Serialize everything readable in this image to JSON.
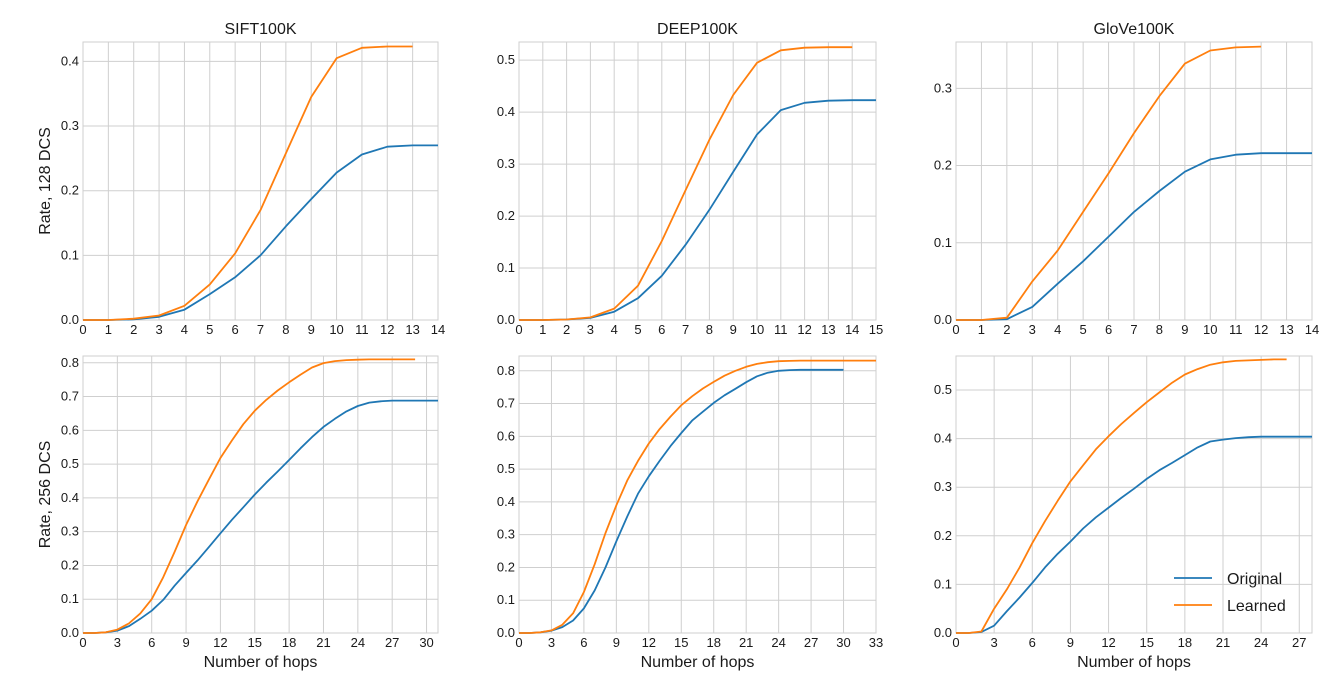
{
  "colors": {
    "original": "#1f77b4",
    "learned": "#ff7f0e",
    "grid": "#cfcfcf",
    "text": "#1a1a1a"
  },
  "legend": {
    "original": "Original",
    "learned": "Learned",
    "location": "lower-right of bottom-right panel"
  },
  "chart_data": [
    {
      "type": "line",
      "title": "SIFT100K",
      "xlabel": "",
      "ylabel": "Rate, 128 DCS",
      "xlim": [
        0,
        14
      ],
      "ylim": [
        0,
        0.43
      ],
      "xticks": [
        0,
        1,
        2,
        3,
        4,
        5,
        6,
        7,
        8,
        9,
        10,
        11,
        12,
        13,
        14
      ],
      "yticks": [
        0.0,
        0.1,
        0.2,
        0.3,
        0.4
      ],
      "grid": true,
      "series": [
        {
          "name": "Original",
          "x": [
            0,
            1,
            2,
            3,
            4,
            5,
            6,
            7,
            8,
            9,
            10,
            11,
            12,
            13,
            14
          ],
          "y": [
            0,
            0,
            0.001,
            0.005,
            0.016,
            0.04,
            0.066,
            0.1,
            0.145,
            0.187,
            0.228,
            0.256,
            0.268,
            0.27,
            0.27
          ]
        },
        {
          "name": "Learned",
          "x": [
            0,
            1,
            2,
            3,
            4,
            5,
            6,
            7,
            8,
            9,
            10,
            11,
            12,
            13
          ],
          "y": [
            0,
            0,
            0.002,
            0.007,
            0.022,
            0.055,
            0.103,
            0.17,
            0.258,
            0.345,
            0.405,
            0.421,
            0.423,
            0.423
          ]
        }
      ]
    },
    {
      "type": "line",
      "title": "DEEP100K",
      "xlabel": "",
      "ylabel": "",
      "xlim": [
        0,
        15
      ],
      "ylim": [
        0,
        0.535
      ],
      "xticks": [
        0,
        1,
        2,
        3,
        4,
        5,
        6,
        7,
        8,
        9,
        10,
        11,
        12,
        13,
        14,
        15
      ],
      "yticks": [
        0.0,
        0.1,
        0.2,
        0.3,
        0.4,
        0.5
      ],
      "grid": true,
      "series": [
        {
          "name": "Original",
          "x": [
            0,
            1,
            2,
            3,
            4,
            5,
            6,
            7,
            8,
            9,
            10,
            11,
            12,
            13,
            14,
            15
          ],
          "y": [
            0,
            0,
            0.001,
            0.004,
            0.016,
            0.042,
            0.085,
            0.145,
            0.212,
            0.285,
            0.357,
            0.404,
            0.418,
            0.422,
            0.423,
            0.423
          ]
        },
        {
          "name": "Learned",
          "x": [
            0,
            1,
            2,
            3,
            4,
            5,
            6,
            7,
            8,
            9,
            10,
            11,
            12,
            13,
            14
          ],
          "y": [
            0,
            0,
            0.001,
            0.005,
            0.022,
            0.066,
            0.152,
            0.25,
            0.347,
            0.433,
            0.495,
            0.519,
            0.524,
            0.525,
            0.525
          ]
        }
      ]
    },
    {
      "type": "line",
      "title": "GloVe100K",
      "xlabel": "",
      "ylabel": "",
      "xlim": [
        0,
        14
      ],
      "ylim": [
        0,
        0.36
      ],
      "xticks": [
        0,
        1,
        2,
        3,
        4,
        5,
        6,
        7,
        8,
        9,
        10,
        11,
        12,
        13,
        14
      ],
      "yticks": [
        0.0,
        0.1,
        0.2,
        0.3
      ],
      "grid": true,
      "series": [
        {
          "name": "Original",
          "x": [
            0,
            1,
            2,
            3,
            4,
            5,
            6,
            7,
            8,
            9,
            10,
            11,
            12,
            13,
            14
          ],
          "y": [
            0,
            0,
            0.001,
            0.017,
            0.047,
            0.076,
            0.108,
            0.14,
            0.167,
            0.192,
            0.208,
            0.214,
            0.216,
            0.216,
            0.216
          ]
        },
        {
          "name": "Learned",
          "x": [
            0,
            1,
            2,
            3,
            4,
            5,
            6,
            7,
            8,
            9,
            10,
            11,
            12
          ],
          "y": [
            0,
            0,
            0.003,
            0.05,
            0.09,
            0.14,
            0.19,
            0.242,
            0.29,
            0.332,
            0.349,
            0.353,
            0.354
          ]
        }
      ]
    },
    {
      "type": "line",
      "title": "",
      "xlabel": "Number of hops",
      "ylabel": "Rate, 256 DCS",
      "xlim": [
        0,
        31
      ],
      "ylim": [
        0,
        0.82
      ],
      "xticks": [
        0,
        3,
        6,
        9,
        12,
        15,
        18,
        21,
        24,
        27,
        30
      ],
      "yticks": [
        0.0,
        0.1,
        0.2,
        0.3,
        0.4,
        0.5,
        0.6,
        0.7,
        0.8
      ],
      "grid": true,
      "series": [
        {
          "name": "Original",
          "x": [
            0,
            1,
            2,
            3,
            4,
            5,
            6,
            7,
            8,
            9,
            10,
            11,
            12,
            13,
            14,
            15,
            16,
            17,
            18,
            19,
            20,
            21,
            22,
            23,
            24,
            25,
            26,
            27,
            28,
            29,
            30,
            31
          ],
          "y": [
            0,
            0,
            0.002,
            0.007,
            0.02,
            0.042,
            0.066,
            0.098,
            0.14,
            0.178,
            0.215,
            0.255,
            0.295,
            0.335,
            0.372,
            0.41,
            0.445,
            0.478,
            0.512,
            0.547,
            0.58,
            0.61,
            0.634,
            0.656,
            0.672,
            0.682,
            0.686,
            0.688,
            0.688,
            0.688,
            0.688,
            0.688
          ]
        },
        {
          "name": "Learned",
          "x": [
            0,
            1,
            2,
            3,
            4,
            5,
            6,
            7,
            8,
            9,
            10,
            11,
            12,
            13,
            14,
            15,
            16,
            17,
            18,
            19,
            20,
            21,
            22,
            23,
            24,
            25,
            26,
            27,
            28,
            29
          ],
          "y": [
            0,
            0,
            0.002,
            0.01,
            0.028,
            0.058,
            0.1,
            0.165,
            0.24,
            0.32,
            0.39,
            0.455,
            0.518,
            0.57,
            0.618,
            0.658,
            0.69,
            0.718,
            0.742,
            0.765,
            0.786,
            0.799,
            0.805,
            0.808,
            0.809,
            0.81,
            0.81,
            0.81,
            0.81,
            0.81
          ]
        }
      ]
    },
    {
      "type": "line",
      "title": "",
      "xlabel": "Number of hops",
      "ylabel": "",
      "xlim": [
        0,
        33
      ],
      "ylim": [
        0,
        0.845
      ],
      "xticks": [
        0,
        3,
        6,
        9,
        12,
        15,
        18,
        21,
        24,
        27,
        30,
        33
      ],
      "yticks": [
        0.0,
        0.1,
        0.2,
        0.3,
        0.4,
        0.5,
        0.6,
        0.7,
        0.8
      ],
      "grid": true,
      "series": [
        {
          "name": "Original",
          "x": [
            0,
            1,
            2,
            3,
            4,
            5,
            6,
            7,
            8,
            9,
            10,
            11,
            12,
            13,
            14,
            15,
            16,
            17,
            18,
            19,
            20,
            21,
            22,
            23,
            24,
            25,
            26,
            27,
            28,
            29,
            30
          ],
          "y": [
            0,
            0,
            0.002,
            0.007,
            0.018,
            0.038,
            0.075,
            0.13,
            0.2,
            0.28,
            0.355,
            0.425,
            0.478,
            0.525,
            0.57,
            0.61,
            0.648,
            0.675,
            0.702,
            0.725,
            0.745,
            0.765,
            0.783,
            0.794,
            0.8,
            0.802,
            0.803,
            0.803,
            0.803,
            0.803,
            0.803
          ]
        },
        {
          "name": "Learned",
          "x": [
            0,
            1,
            2,
            3,
            4,
            5,
            6,
            7,
            8,
            9,
            10,
            11,
            12,
            13,
            14,
            15,
            16,
            17,
            18,
            19,
            20,
            21,
            22,
            23,
            24,
            25,
            26,
            27,
            28,
            29,
            30,
            31,
            32,
            33
          ],
          "y": [
            0,
            0,
            0.002,
            0.008,
            0.025,
            0.06,
            0.125,
            0.21,
            0.305,
            0.39,
            0.465,
            0.525,
            0.578,
            0.622,
            0.66,
            0.695,
            0.722,
            0.746,
            0.766,
            0.785,
            0.8,
            0.812,
            0.821,
            0.826,
            0.829,
            0.83,
            0.831,
            0.831,
            0.831,
            0.831,
            0.831,
            0.831,
            0.831,
            0.831
          ]
        }
      ]
    },
    {
      "type": "line",
      "title": "",
      "xlabel": "Number of hops",
      "ylabel": "",
      "xlim": [
        0,
        28
      ],
      "ylim": [
        0,
        0.57
      ],
      "xticks": [
        0,
        3,
        6,
        9,
        12,
        15,
        18,
        21,
        24,
        27
      ],
      "yticks": [
        0.0,
        0.1,
        0.2,
        0.3,
        0.4,
        0.5
      ],
      "grid": true,
      "series": [
        {
          "name": "Original",
          "x": [
            0,
            1,
            2,
            3,
            4,
            5,
            6,
            7,
            8,
            9,
            10,
            11,
            12,
            13,
            14,
            15,
            16,
            17,
            18,
            19,
            20,
            21,
            22,
            23,
            24,
            25,
            26,
            27,
            28
          ],
          "y": [
            0,
            0,
            0.002,
            0.015,
            0.045,
            0.073,
            0.103,
            0.135,
            0.163,
            0.188,
            0.215,
            0.238,
            0.258,
            0.278,
            0.297,
            0.317,
            0.335,
            0.35,
            0.366,
            0.382,
            0.394,
            0.398,
            0.401,
            0.403,
            0.404,
            0.404,
            0.404,
            0.404,
            0.404
          ]
        },
        {
          "name": "Learned",
          "x": [
            0,
            1,
            2,
            3,
            4,
            5,
            6,
            7,
            8,
            9,
            10,
            11,
            12,
            13,
            14,
            15,
            16,
            17,
            18,
            19,
            20,
            21,
            22,
            23,
            24,
            25,
            26
          ],
          "y": [
            0,
            0,
            0.003,
            0.05,
            0.09,
            0.135,
            0.185,
            0.23,
            0.272,
            0.312,
            0.345,
            0.378,
            0.405,
            0.43,
            0.453,
            0.475,
            0.495,
            0.515,
            0.532,
            0.543,
            0.552,
            0.557,
            0.56,
            0.561,
            0.562,
            0.563,
            0.563
          ]
        }
      ]
    }
  ]
}
